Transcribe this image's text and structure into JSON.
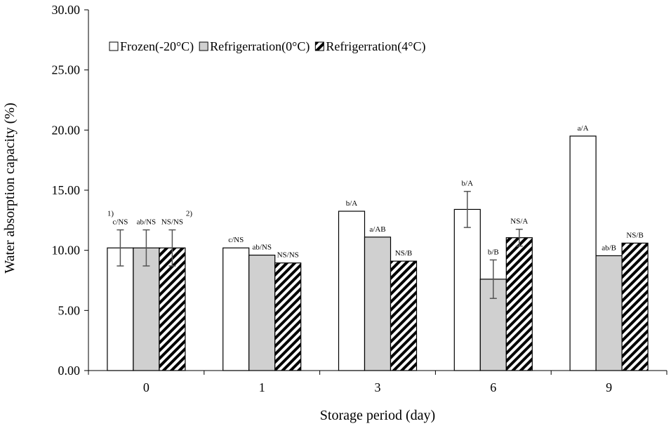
{
  "chart_data": {
    "type": "bar",
    "ylabel": "Water absorption capacity (%)",
    "xlabel": "Storage period (day)",
    "ylim": [
      0,
      30
    ],
    "yticks": [
      "0.00",
      "5.00",
      "10.00",
      "15.00",
      "20.00",
      "25.00",
      "30.00"
    ],
    "categories": [
      "0",
      "1",
      "3",
      "6",
      "9"
    ],
    "grid": false,
    "legend_position": "top-left",
    "series": [
      {
        "name": "Frozen(-20°C)",
        "pattern": "empty",
        "fill": "#ffffff",
        "values": [
          10.2,
          10.2,
          13.25,
          13.4,
          19.5
        ],
        "errors": [
          1.5,
          null,
          null,
          1.5,
          null
        ],
        "labels": [
          "c/NS",
          "c/NS",
          "b/A",
          "b/A",
          "a/A"
        ]
      },
      {
        "name": "Refrigerration(0°C)",
        "pattern": "solid",
        "fill": "#d0d0d0",
        "values": [
          10.2,
          9.6,
          11.1,
          7.6,
          9.55
        ],
        "errors": [
          1.5,
          null,
          null,
          1.6,
          null
        ],
        "labels": [
          "ab/NS",
          "ab/NS",
          "a/AB",
          "b/B",
          "ab/B"
        ]
      },
      {
        "name": "Refrigerration(4°C)",
        "pattern": "diagonal-hatch",
        "fill": "#000000",
        "values": [
          10.2,
          8.95,
          9.1,
          11.05,
          10.6
        ],
        "errors": [
          1.5,
          null,
          null,
          0.7,
          null
        ],
        "labels": [
          "NS/NS",
          "NS/NS",
          "NS/B",
          "NS/A",
          "NS/B"
        ]
      }
    ],
    "annotations": [
      {
        "text": "1)",
        "category": "0",
        "series": 0
      },
      {
        "text": "2)",
        "category": "0",
        "series": 2
      }
    ]
  }
}
